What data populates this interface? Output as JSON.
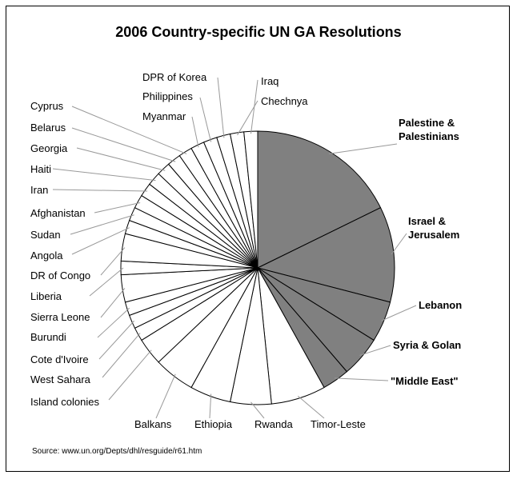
{
  "chart_data": {
    "type": "pie",
    "title": "2006 Country-specific UN GA Resolutions",
    "source": "Source: www.un.org/Depts/dhl/resguide/r61.htm",
    "colors": {
      "highlight": "#808080",
      "other": "#ffffff",
      "stroke": "#000000",
      "leader": "#999999"
    },
    "slices": [
      {
        "label": "Palestine & Palestinians",
        "value": 11,
        "highlight": true
      },
      {
        "label": "Israel & Jerusalem",
        "value": 7,
        "highlight": true
      },
      {
        "label": "Lebanon",
        "value": 3,
        "highlight": true
      },
      {
        "label": "Syria & Golan",
        "value": 3,
        "highlight": true
      },
      {
        "label": "\"Middle East\"",
        "value": 2,
        "highlight": true
      },
      {
        "label": "Timor-Leste",
        "value": 4,
        "highlight": false
      },
      {
        "label": "Rwanda",
        "value": 3,
        "highlight": false
      },
      {
        "label": "Ethiopia",
        "value": 3,
        "highlight": false
      },
      {
        "label": "Balkans",
        "value": 3,
        "highlight": false
      },
      {
        "label": "Island colonies",
        "value": 2,
        "highlight": false
      },
      {
        "label": "West Sahara",
        "value": 1,
        "highlight": false
      },
      {
        "label": "Cote d'Ivoire",
        "value": 1,
        "highlight": false
      },
      {
        "label": "Burundi",
        "value": 1,
        "highlight": false
      },
      {
        "label": "Sierra Leone",
        "value": 2,
        "highlight": false
      },
      {
        "label": "Liberia",
        "value": 1,
        "highlight": false
      },
      {
        "label": "DR of Congo",
        "value": 2,
        "highlight": false
      },
      {
        "label": "Angola",
        "value": 1,
        "highlight": false
      },
      {
        "label": "Sudan",
        "value": 1,
        "highlight": false
      },
      {
        "label": "Afghanistan",
        "value": 1,
        "highlight": false
      },
      {
        "label": "Iran",
        "value": 1,
        "highlight": false
      },
      {
        "label": "Haiti",
        "value": 1,
        "highlight": false
      },
      {
        "label": "Georgia",
        "value": 1,
        "highlight": false
      },
      {
        "label": "Belarus",
        "value": 1,
        "highlight": false
      },
      {
        "label": "Cyprus",
        "value": 1,
        "highlight": false
      },
      {
        "label": "Myanmar",
        "value": 1,
        "highlight": false
      },
      {
        "label": "Philippines",
        "value": 1,
        "highlight": false
      },
      {
        "label": "DPR of Korea",
        "value": 1,
        "highlight": false
      },
      {
        "label": "Chechnya",
        "value": 1,
        "highlight": false
      },
      {
        "label": "Iraq",
        "value": 1,
        "highlight": false
      }
    ]
  }
}
